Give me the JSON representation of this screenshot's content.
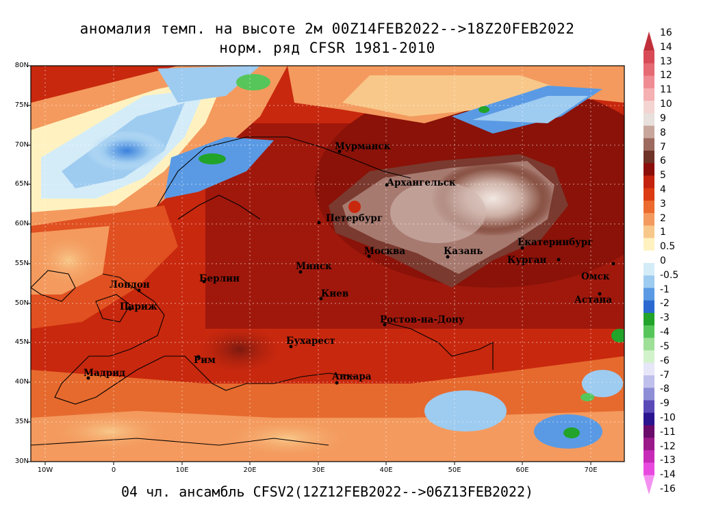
{
  "title": {
    "line1": "аномалия темп. на высоте 2м 00Z14FEB2022-->18Z20FEB2022",
    "line2": "норм. ряд CFSR 1981-2010"
  },
  "footer": "04 чл. ансамбль CFSV2(12Z12FEB2022-->06Z13FEB2022)",
  "axes": {
    "lat_labels": [
      "80N",
      "75N",
      "70N",
      "65N",
      "60N",
      "55N",
      "50N",
      "45N",
      "40N",
      "35N",
      "30N"
    ],
    "lon_labels": [
      "10W",
      "0",
      "10E",
      "20E",
      "30E",
      "40E",
      "50E",
      "60E",
      "70E"
    ]
  },
  "cities": [
    {
      "name": "Мурманск"
    },
    {
      "name": "Архангельск"
    },
    {
      "name": "Петербург"
    },
    {
      "name": "Москва"
    },
    {
      "name": "Казань"
    },
    {
      "name": "Екатеринбург"
    },
    {
      "name": "Курган"
    },
    {
      "name": "Омск"
    },
    {
      "name": "Астана"
    },
    {
      "name": "Минск"
    },
    {
      "name": "Киев"
    },
    {
      "name": "Берлин"
    },
    {
      "name": "Лондон"
    },
    {
      "name": "Париж"
    },
    {
      "name": "Мадрид"
    },
    {
      "name": "Рим"
    },
    {
      "name": "Бухарест"
    },
    {
      "name": "Анкара"
    },
    {
      "name": "Ростов-на-Дону"
    }
  ],
  "legend": {
    "labels": [
      "16",
      "14",
      "13",
      "12",
      "11",
      "10",
      "9",
      "8",
      "7",
      "6",
      "5",
      "4",
      "3",
      "2",
      "1",
      "0.5",
      "0",
      "-0.5",
      "-1",
      "-2",
      "-3",
      "-4",
      "-5",
      "-6",
      "-7",
      "-8",
      "-9",
      "-10",
      "-11",
      "-12",
      "-13",
      "-14",
      "-16"
    ],
    "colors": [
      "#c0303a",
      "#d84a55",
      "#e66a74",
      "#ef8c94",
      "#f5b0b2",
      "#f3d4d0",
      "#e8e0dc",
      "#c8a69c",
      "#9c6a5e",
      "#6e3226",
      "#8c0e0a",
      "#c2220e",
      "#dc3a12",
      "#ec6a2e",
      "#f49a5e",
      "#f8c88a",
      "#fff2c0",
      "#ffffff",
      "#d4ecf8",
      "#9ecbf0",
      "#5a9ae4",
      "#2a6ad0",
      "#22a32a",
      "#56c65a",
      "#9ee098",
      "#d2f2cc",
      "#e6e6f8",
      "#c0c0ec",
      "#8e8ed6",
      "#5a4ab8",
      "#2a1490",
      "#6a0a6a",
      "#9a1a8a",
      "#c82ab8",
      "#e84ae0",
      "#f490f0"
    ]
  }
}
